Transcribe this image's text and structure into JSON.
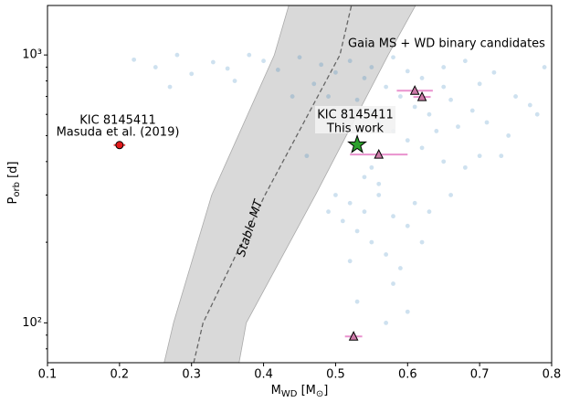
{
  "chart_data": {
    "type": "scatter",
    "xlabel": {
      "main": "M",
      "sub": "WD",
      "mid": " [M",
      "sub2": "⊙",
      "end": "]"
    },
    "ylabel": {
      "main": "P",
      "sub": "orb",
      "end": " [d]"
    },
    "xlim": [
      0.1,
      0.8
    ],
    "xticks": [
      0.1,
      0.2,
      0.3,
      0.4,
      0.5,
      0.6,
      0.7,
      0.8
    ],
    "ylim": [
      71,
      1530
    ],
    "log_y": true,
    "yticks": [
      {
        "value": 100,
        "label": "10²"
      },
      {
        "value": 1000,
        "label": "10³"
      }
    ],
    "yminor": [
      80,
      90,
      200,
      300,
      400,
      500,
      600,
      700,
      800,
      900
    ],
    "band": {
      "label": "Stable MT",
      "color": "#d9d9d9",
      "y": [
        71,
        100,
        300,
        1000,
        1530
      ],
      "x_left": [
        0.262,
        0.275,
        0.328,
        0.415,
        0.435
      ],
      "x_right": [
        0.366,
        0.376,
        0.472,
        0.573,
        0.611
      ],
      "x_center": [
        0.303,
        0.316,
        0.402,
        0.506,
        0.522
      ]
    },
    "cloud": {
      "label": "Gaia MS + WD binary candidates",
      "color": "#1f77b4",
      "x": [
        0.52,
        0.55,
        0.58,
        0.6,
        0.62,
        0.65,
        0.68,
        0.7,
        0.72,
        0.75,
        0.54,
        0.57,
        0.59,
        0.61,
        0.63,
        0.66,
        0.69,
        0.71,
        0.74,
        0.56,
        0.58,
        0.6,
        0.62,
        0.64,
        0.67,
        0.53,
        0.55,
        0.65,
        0.77,
        0.79,
        0.5,
        0.48,
        0.45,
        0.42,
        0.4,
        0.38,
        0.35,
        0.47,
        0.49,
        0.51,
        0.22,
        0.25,
        0.28,
        0.3,
        0.33,
        0.27,
        0.36,
        0.44,
        0.5,
        0.52,
        0.54,
        0.56,
        0.58,
        0.6,
        0.53,
        0.55,
        0.57,
        0.59,
        0.51,
        0.61,
        0.63,
        0.56,
        0.54,
        0.62,
        0.58,
        0.52,
        0.49,
        0.66,
        0.55,
        0.65,
        0.7,
        0.46,
        0.6,
        0.53,
        0.78,
        0.73,
        0.68,
        0.57
      ],
      "values": [
        950,
        900,
        980,
        870,
        820,
        900,
        950,
        780,
        860,
        700,
        820,
        760,
        700,
        640,
        600,
        680,
        620,
        560,
        500,
        560,
        520,
        480,
        450,
        520,
        540,
        680,
        620,
        760,
        650,
        900,
        860,
        920,
        980,
        880,
        950,
        1000,
        890,
        780,
        700,
        600,
        960,
        900,
        1000,
        850,
        940,
        760,
        800,
        700,
        300,
        280,
        260,
        300,
        250,
        230,
        220,
        200,
        180,
        160,
        240,
        280,
        260,
        330,
        350,
        200,
        140,
        170,
        260,
        300,
        380,
        400,
        420,
        420,
        110,
        120,
        600,
        420,
        380,
        100
      ]
    },
    "points": [
      {
        "label": [
          "KIC 8145411",
          "Masuda et al. (2019)"
        ],
        "marker": "circle",
        "color": "#e41a1c",
        "x": 0.2,
        "y": 461,
        "xerr": 0.008
      },
      {
        "label": [
          "KIC 8145411",
          "This work"
        ],
        "marker": "star",
        "color": "#2ca02c",
        "x": 0.53,
        "y": 462
      },
      {
        "marker": "triangle",
        "color": "#cc79a7",
        "x": 0.61,
        "y": 736,
        "xerr": 0.025
      },
      {
        "marker": "triangle",
        "color": "#cc79a7",
        "x": 0.62,
        "y": 697,
        "xerr": 0.012
      },
      {
        "marker": "triangle",
        "color": "#cc79a7",
        "x": 0.56,
        "y": 425,
        "xerr": 0.04
      },
      {
        "marker": "triangle",
        "color": "#cc79a7",
        "x": 0.525,
        "y": 89,
        "xerr": 0.012
      }
    ]
  }
}
